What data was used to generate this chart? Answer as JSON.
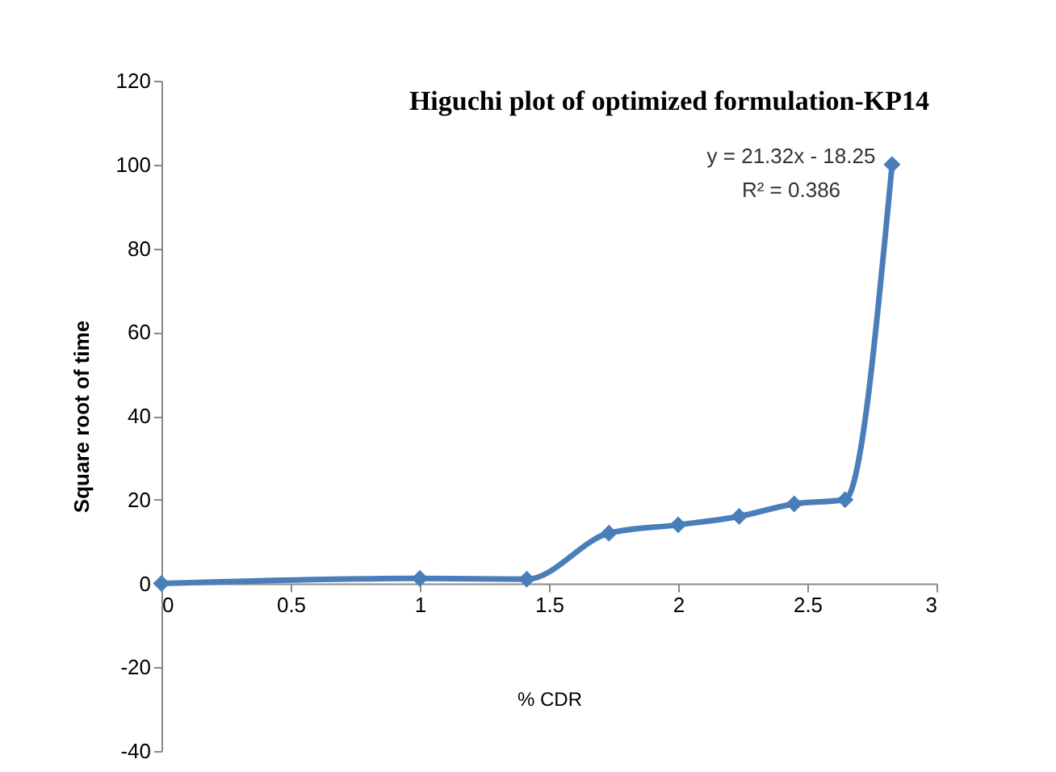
{
  "chart_data": {
    "type": "line",
    "title": "Higuchi plot of optimized formulation-KP14",
    "xlabel": "% CDR",
    "ylabel": "Square root of time",
    "annotations": [
      "y = 21.32x - 18.25",
      "R² = 0.386"
    ],
    "x": [
      0,
      1,
      1.414,
      1.732,
      2,
      2.236,
      2.449,
      2.646,
      2.828
    ],
    "series": [
      {
        "color": "#4a7ebb",
        "values": [
          0,
          1.2,
          1,
          12,
          14,
          16,
          19,
          20,
          100
        ]
      }
    ],
    "xlim": [
      0,
      3
    ],
    "xticks": [
      0,
      0.5,
      1,
      1.5,
      2,
      2.5,
      3
    ],
    "ylim": [
      -40,
      120
    ],
    "yticks": [
      -40,
      -20,
      0,
      20,
      40,
      60,
      80,
      100,
      120
    ],
    "grid": false,
    "marker": "diamond",
    "line_style": "solid"
  }
}
